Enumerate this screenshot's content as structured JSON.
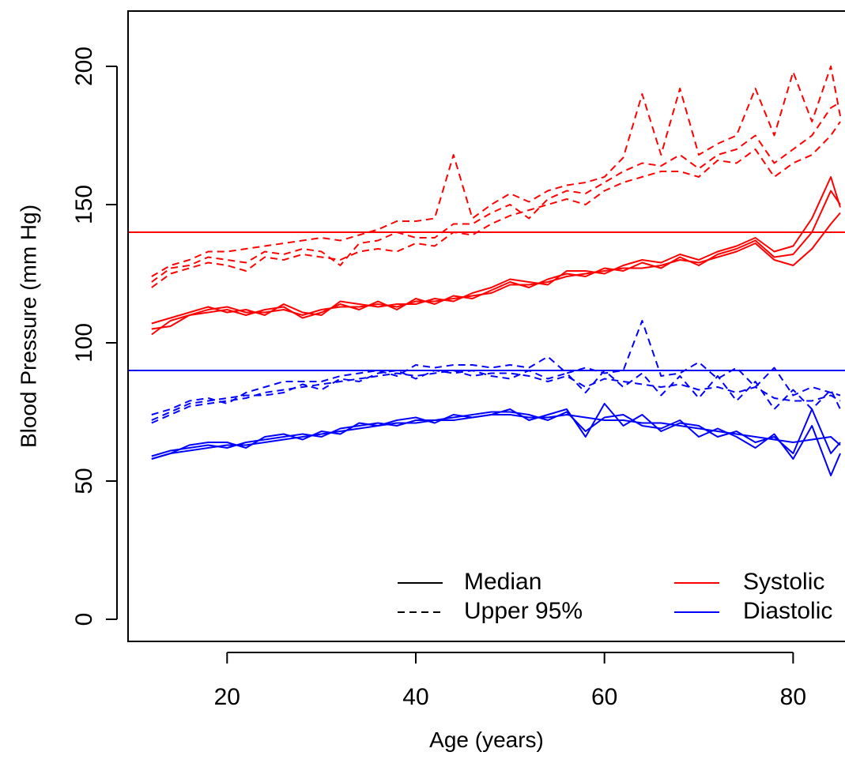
{
  "chart_data": {
    "type": "line",
    "title": "",
    "xlabel": "Age (years)",
    "ylabel": "Blood Pressure (mm Hg)",
    "xlim": [
      9.5,
      85.5
    ],
    "ylim": [
      -8,
      220
    ],
    "x_ticks": [
      20,
      40,
      60,
      80
    ],
    "y_ticks": [
      0,
      50,
      100,
      150,
      200
    ],
    "grid": false,
    "legend_position": "bottom-right",
    "colors": {
      "systolic": "#ff0000",
      "diastolic": "#0000ff",
      "legend_line": "#000000"
    },
    "legend": [
      {
        "label": "Median",
        "dash": "solid",
        "color": "#000000"
      },
      {
        "label": "Upper 95%",
        "dash": "dashed",
        "color": "#000000"
      },
      {
        "label": "Systolic",
        "dash": "solid",
        "color": "#ff0000"
      },
      {
        "label": "Diastolic",
        "dash": "solid",
        "color": "#0000ff"
      }
    ],
    "reference_lines": [
      {
        "y": 140,
        "color": "#ff0000"
      },
      {
        "y": 90,
        "color": "#0000ff"
      }
    ],
    "x": [
      12,
      14,
      16,
      18,
      20,
      22,
      24,
      26,
      28,
      30,
      32,
      34,
      36,
      38,
      40,
      42,
      44,
      46,
      48,
      50,
      52,
      54,
      56,
      58,
      60,
      62,
      64,
      66,
      68,
      70,
      72,
      74,
      76,
      78,
      80,
      82,
      84,
      85
    ],
    "series": [
      {
        "group": "systolic",
        "kind": "median",
        "values": [
          103,
          108,
          110,
          112,
          113,
          111,
          111,
          112,
          110,
          112,
          113,
          113,
          114,
          113,
          115,
          115,
          116,
          117,
          118,
          121,
          121,
          122,
          124,
          125,
          126,
          127,
          127,
          128,
          130,
          129,
          131,
          133,
          136,
          130,
          128,
          134,
          143,
          147
        ]
      },
      {
        "group": "systolic",
        "kind": "median",
        "values": [
          105,
          106,
          110,
          111,
          112,
          110,
          112,
          113,
          109,
          111,
          114,
          112,
          115,
          112,
          116,
          114,
          117,
          116,
          119,
          122,
          120,
          123,
          125,
          124,
          127,
          126,
          129,
          127,
          131,
          128,
          132,
          134,
          137,
          131,
          132,
          140,
          155,
          150
        ]
      },
      {
        "group": "systolic",
        "kind": "median",
        "values": [
          107,
          109,
          111,
          113,
          111,
          112,
          110,
          114,
          111,
          110,
          115,
          114,
          113,
          114,
          114,
          116,
          115,
          118,
          120,
          123,
          122,
          121,
          126,
          126,
          125,
          128,
          130,
          129,
          132,
          130,
          133,
          135,
          138,
          133,
          135,
          145,
          160,
          149
        ]
      },
      {
        "group": "systolic",
        "kind": "upper95",
        "values": [
          120,
          125,
          127,
          129,
          128,
          126,
          131,
          130,
          132,
          131,
          130,
          133,
          134,
          133,
          136,
          135,
          140,
          139,
          143,
          146,
          148,
          150,
          152,
          150,
          155,
          158,
          160,
          162,
          162,
          160,
          166,
          165,
          170,
          160,
          165,
          168,
          175,
          180
        ]
      },
      {
        "group": "systolic",
        "kind": "upper95",
        "values": [
          122,
          127,
          128,
          131,
          130,
          129,
          133,
          132,
          134,
          133,
          128,
          136,
          137,
          140,
          138,
          138,
          143,
          143,
          147,
          150,
          145,
          152,
          155,
          154,
          158,
          162,
          165,
          164,
          168,
          163,
          168,
          170,
          175,
          165,
          170,
          175,
          185,
          187
        ]
      },
      {
        "group": "systolic",
        "kind": "upper95",
        "values": [
          124,
          128,
          130,
          133,
          133,
          134,
          135,
          136,
          137,
          138,
          137,
          139,
          141,
          144,
          144,
          145,
          168,
          145,
          150,
          154,
          151,
          155,
          157,
          158,
          160,
          167,
          190,
          168,
          192,
          168,
          172,
          175,
          192,
          175,
          198,
          180,
          200,
          182
        ]
      },
      {
        "group": "diastolic",
        "kind": "median",
        "values": [
          58,
          60,
          61,
          62,
          63,
          63,
          64,
          65,
          66,
          67,
          68,
          69,
          70,
          71,
          71,
          72,
          72,
          73,
          74,
          74,
          73,
          73,
          74,
          73,
          72,
          72,
          71,
          71,
          70,
          69,
          68,
          67,
          66,
          65,
          64,
          65,
          66,
          63
        ]
      },
      {
        "group": "diastolic",
        "kind": "median",
        "values": [
          59,
          61,
          62,
          63,
          62,
          64,
          65,
          66,
          67,
          66,
          69,
          70,
          71,
          70,
          72,
          72,
          73,
          74,
          75,
          75,
          74,
          72,
          75,
          68,
          73,
          74,
          70,
          69,
          72,
          66,
          69,
          66,
          62,
          67,
          58,
          70,
          52,
          60
        ]
      },
      {
        "group": "diastolic",
        "kind": "median",
        "values": [
          58,
          60,
          63,
          64,
          64,
          62,
          66,
          67,
          65,
          68,
          67,
          71,
          70,
          72,
          73,
          71,
          74,
          73,
          74,
          76,
          72,
          74,
          76,
          66,
          78,
          70,
          74,
          68,
          71,
          70,
          66,
          68,
          64,
          66,
          60,
          76,
          60,
          64
        ]
      },
      {
        "group": "diastolic",
        "kind": "upper95",
        "values": [
          71,
          74,
          77,
          78,
          79,
          80,
          82,
          83,
          84,
          85,
          86,
          87,
          88,
          89,
          88,
          89,
          90,
          88,
          89,
          89,
          88,
          86,
          88,
          84,
          87,
          86,
          85,
          84,
          85,
          83,
          84,
          82,
          84,
          80,
          79,
          79,
          81,
          79
        ]
      },
      {
        "group": "diastolic",
        "kind": "upper95",
        "values": [
          72,
          75,
          78,
          79,
          80,
          81,
          81,
          82,
          85,
          83,
          87,
          86,
          89,
          90,
          87,
          90,
          89,
          90,
          88,
          87,
          90,
          87,
          89,
          82,
          90,
          84,
          89,
          81,
          88,
          80,
          88,
          79,
          86,
          76,
          83,
          76,
          83,
          76
        ]
      },
      {
        "group": "diastolic",
        "kind": "upper95",
        "values": [
          74,
          76,
          79,
          80,
          78,
          82,
          84,
          86,
          86,
          86,
          88,
          89,
          90,
          88,
          92,
          91,
          92,
          92,
          91,
          92,
          91,
          95,
          89,
          91,
          89,
          90,
          108,
          88,
          89,
          93,
          87,
          91,
          84,
          91,
          81,
          84,
          82,
          81
        ]
      }
    ]
  }
}
